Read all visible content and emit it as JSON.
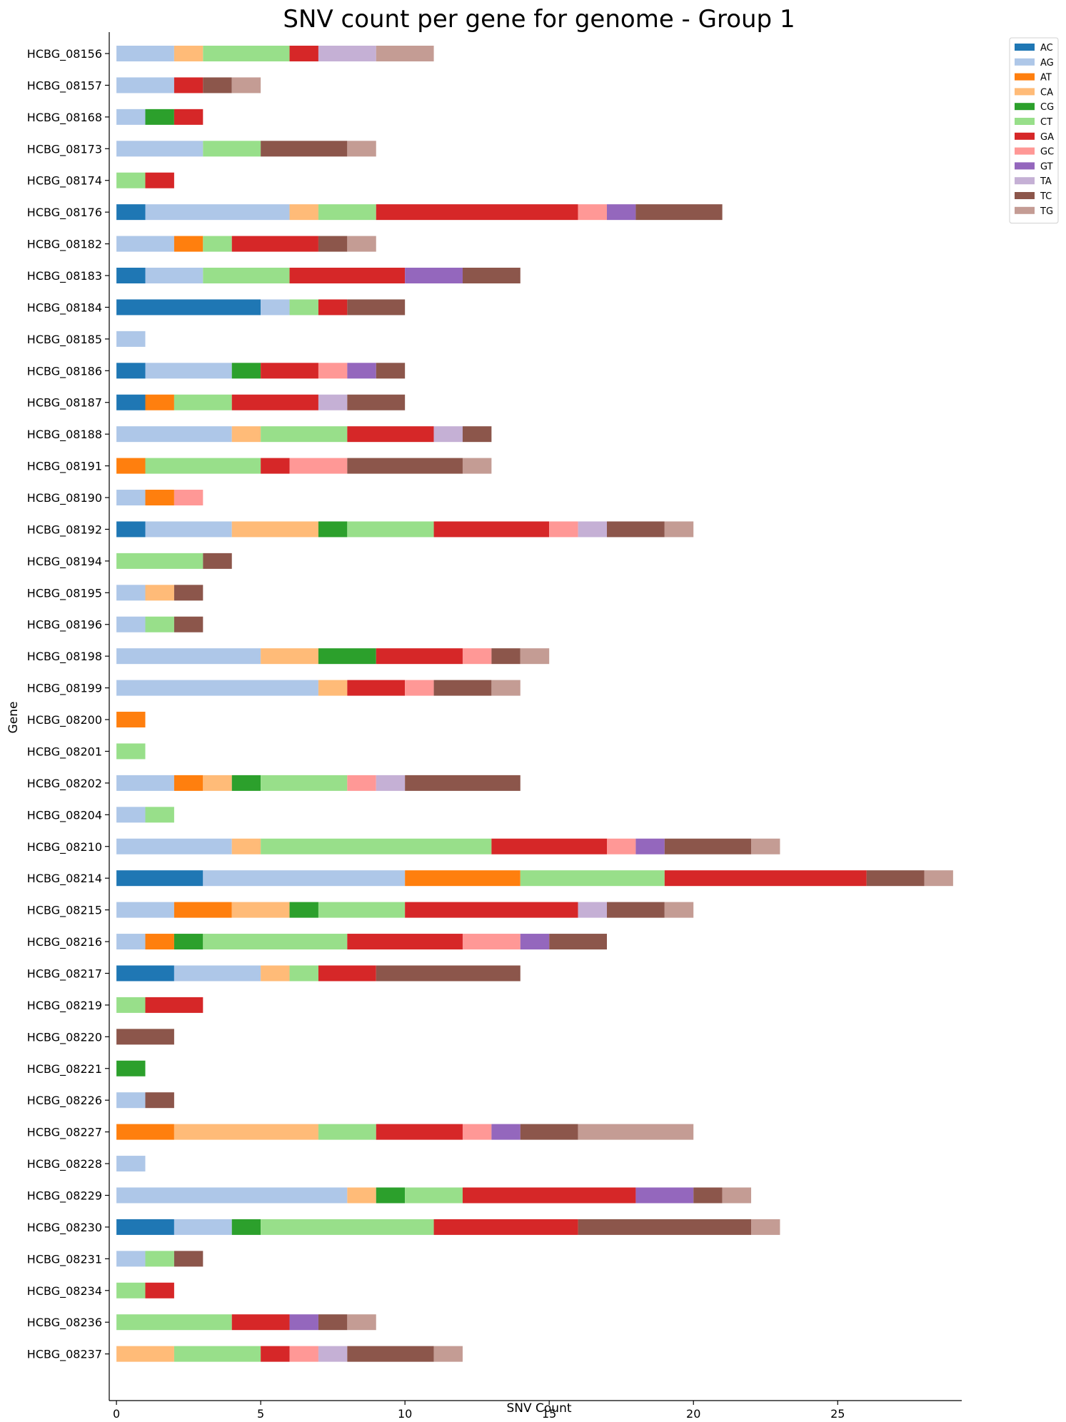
{
  "chart_data": {
    "type": "bar",
    "orientation": "horizontal",
    "stacked": true,
    "title": "SNV count per gene for genome - Group 1",
    "xlabel": "SNV Count",
    "ylabel": "Gene",
    "xlim": [
      -0.25,
      29.3
    ],
    "xticks": [
      0,
      5,
      10,
      15,
      20,
      25
    ],
    "grid": false,
    "legend_position": "top-right",
    "categories": [
      "HCBG_08156",
      "HCBG_08157",
      "HCBG_08168",
      "HCBG_08173",
      "HCBG_08174",
      "HCBG_08176",
      "HCBG_08182",
      "HCBG_08183",
      "HCBG_08184",
      "HCBG_08185",
      "HCBG_08186",
      "HCBG_08187",
      "HCBG_08188",
      "HCBG_08191",
      "HCBG_08190",
      "HCBG_08192",
      "HCBG_08194",
      "HCBG_08195",
      "HCBG_08196",
      "HCBG_08198",
      "HCBG_08199",
      "HCBG_08200",
      "HCBG_08201",
      "HCBG_08202",
      "HCBG_08204",
      "HCBG_08210",
      "HCBG_08214",
      "HCBG_08215",
      "HCBG_08216",
      "HCBG_08217",
      "HCBG_08219",
      "HCBG_08220",
      "HCBG_08221",
      "HCBG_08226",
      "HCBG_08227",
      "HCBG_08228",
      "HCBG_08229",
      "HCBG_08230",
      "HCBG_08231",
      "HCBG_08234",
      "HCBG_08236",
      "HCBG_08237"
    ],
    "series": [
      {
        "name": "AC",
        "color": "#1f77b4",
        "values": [
          0,
          0,
          0,
          0,
          0,
          1,
          0,
          1,
          5,
          0,
          1,
          1,
          0,
          0,
          0,
          1,
          0,
          0,
          0,
          0,
          0,
          0,
          0,
          0,
          0,
          0,
          3,
          0,
          0,
          2,
          0,
          0,
          0,
          0,
          0,
          0,
          0,
          2,
          0,
          0,
          0,
          0
        ]
      },
      {
        "name": "AG",
        "color": "#aec7e8",
        "values": [
          2,
          2,
          1,
          3,
          0,
          5,
          2,
          2,
          1,
          1,
          3,
          0,
          4,
          0,
          1,
          3,
          0,
          1,
          1,
          5,
          7,
          0,
          0,
          2,
          1,
          4,
          7,
          2,
          1,
          3,
          0,
          0,
          0,
          1,
          0,
          1,
          8,
          2,
          1,
          0,
          0,
          0
        ]
      },
      {
        "name": "AT",
        "color": "#ff7f0e",
        "values": [
          0,
          0,
          0,
          0,
          0,
          0,
          1,
          0,
          0,
          0,
          0,
          1,
          0,
          1,
          1,
          0,
          0,
          0,
          0,
          0,
          0,
          1,
          0,
          1,
          0,
          0,
          4,
          2,
          1,
          0,
          0,
          0,
          0,
          0,
          2,
          0,
          0,
          0,
          0,
          0,
          0,
          0
        ]
      },
      {
        "name": "CA",
        "color": "#ffbb78",
        "values": [
          1,
          0,
          0,
          0,
          0,
          1,
          0,
          0,
          0,
          0,
          0,
          0,
          1,
          0,
          0,
          3,
          0,
          1,
          0,
          2,
          1,
          0,
          0,
          1,
          0,
          1,
          0,
          2,
          0,
          1,
          0,
          0,
          0,
          0,
          5,
          0,
          1,
          0,
          0,
          0,
          0,
          2
        ]
      },
      {
        "name": "CG",
        "color": "#2ca02c",
        "values": [
          0,
          0,
          1,
          0,
          0,
          0,
          0,
          0,
          0,
          0,
          1,
          0,
          0,
          0,
          0,
          1,
          0,
          0,
          0,
          2,
          0,
          0,
          0,
          1,
          0,
          0,
          0,
          1,
          1,
          0,
          0,
          0,
          1,
          0,
          0,
          0,
          1,
          1,
          0,
          0,
          0,
          0
        ]
      },
      {
        "name": "CT",
        "color": "#98df8a",
        "values": [
          3,
          0,
          0,
          2,
          1,
          2,
          1,
          3,
          1,
          0,
          0,
          2,
          3,
          4,
          0,
          3,
          3,
          0,
          1,
          0,
          0,
          0,
          1,
          3,
          1,
          8,
          5,
          3,
          5,
          1,
          1,
          0,
          0,
          0,
          2,
          0,
          2,
          6,
          1,
          1,
          4,
          3
        ]
      },
      {
        "name": "GA",
        "color": "#d62728",
        "values": [
          1,
          1,
          1,
          0,
          1,
          7,
          3,
          4,
          1,
          0,
          2,
          3,
          3,
          1,
          0,
          4,
          0,
          0,
          0,
          3,
          2,
          0,
          0,
          0,
          0,
          4,
          7,
          6,
          4,
          2,
          2,
          0,
          0,
          0,
          3,
          0,
          6,
          5,
          0,
          1,
          2,
          1
        ]
      },
      {
        "name": "GC",
        "color": "#ff9896",
        "values": [
          0,
          0,
          0,
          0,
          0,
          1,
          0,
          0,
          0,
          0,
          1,
          0,
          0,
          2,
          1,
          1,
          0,
          0,
          0,
          1,
          1,
          0,
          0,
          1,
          0,
          1,
          0,
          0,
          2,
          0,
          0,
          0,
          0,
          0,
          1,
          0,
          0,
          0,
          0,
          0,
          0,
          1
        ]
      },
      {
        "name": "GT",
        "color": "#9467bd",
        "values": [
          0,
          0,
          0,
          0,
          0,
          1,
          0,
          2,
          0,
          0,
          1,
          0,
          0,
          0,
          0,
          0,
          0,
          0,
          0,
          0,
          0,
          0,
          0,
          0,
          0,
          1,
          0,
          0,
          1,
          0,
          0,
          0,
          0,
          0,
          1,
          0,
          2,
          0,
          0,
          0,
          1,
          0
        ]
      },
      {
        "name": "TA",
        "color": "#c5b0d5",
        "values": [
          2,
          0,
          0,
          0,
          0,
          0,
          0,
          0,
          0,
          0,
          0,
          1,
          1,
          0,
          0,
          1,
          0,
          0,
          0,
          0,
          0,
          0,
          0,
          1,
          0,
          0,
          0,
          1,
          0,
          0,
          0,
          0,
          0,
          0,
          0,
          0,
          0,
          0,
          0,
          0,
          0,
          1
        ]
      },
      {
        "name": "TC",
        "color": "#8c564b",
        "values": [
          0,
          1,
          0,
          3,
          0,
          3,
          1,
          2,
          2,
          0,
          1,
          2,
          1,
          4,
          0,
          2,
          1,
          1,
          1,
          1,
          2,
          0,
          0,
          4,
          0,
          3,
          2,
          2,
          2,
          5,
          0,
          2,
          0,
          1,
          2,
          0,
          1,
          6,
          1,
          0,
          1,
          3
        ]
      },
      {
        "name": "TG",
        "color": "#c49c94",
        "values": [
          2,
          1,
          0,
          1,
          0,
          0,
          1,
          0,
          0,
          0,
          0,
          0,
          0,
          1,
          0,
          1,
          0,
          0,
          0,
          1,
          1,
          0,
          0,
          0,
          0,
          1,
          1,
          1,
          0,
          0,
          0,
          0,
          0,
          0,
          4,
          0,
          1,
          1,
          0,
          0,
          1,
          1
        ]
      }
    ]
  }
}
